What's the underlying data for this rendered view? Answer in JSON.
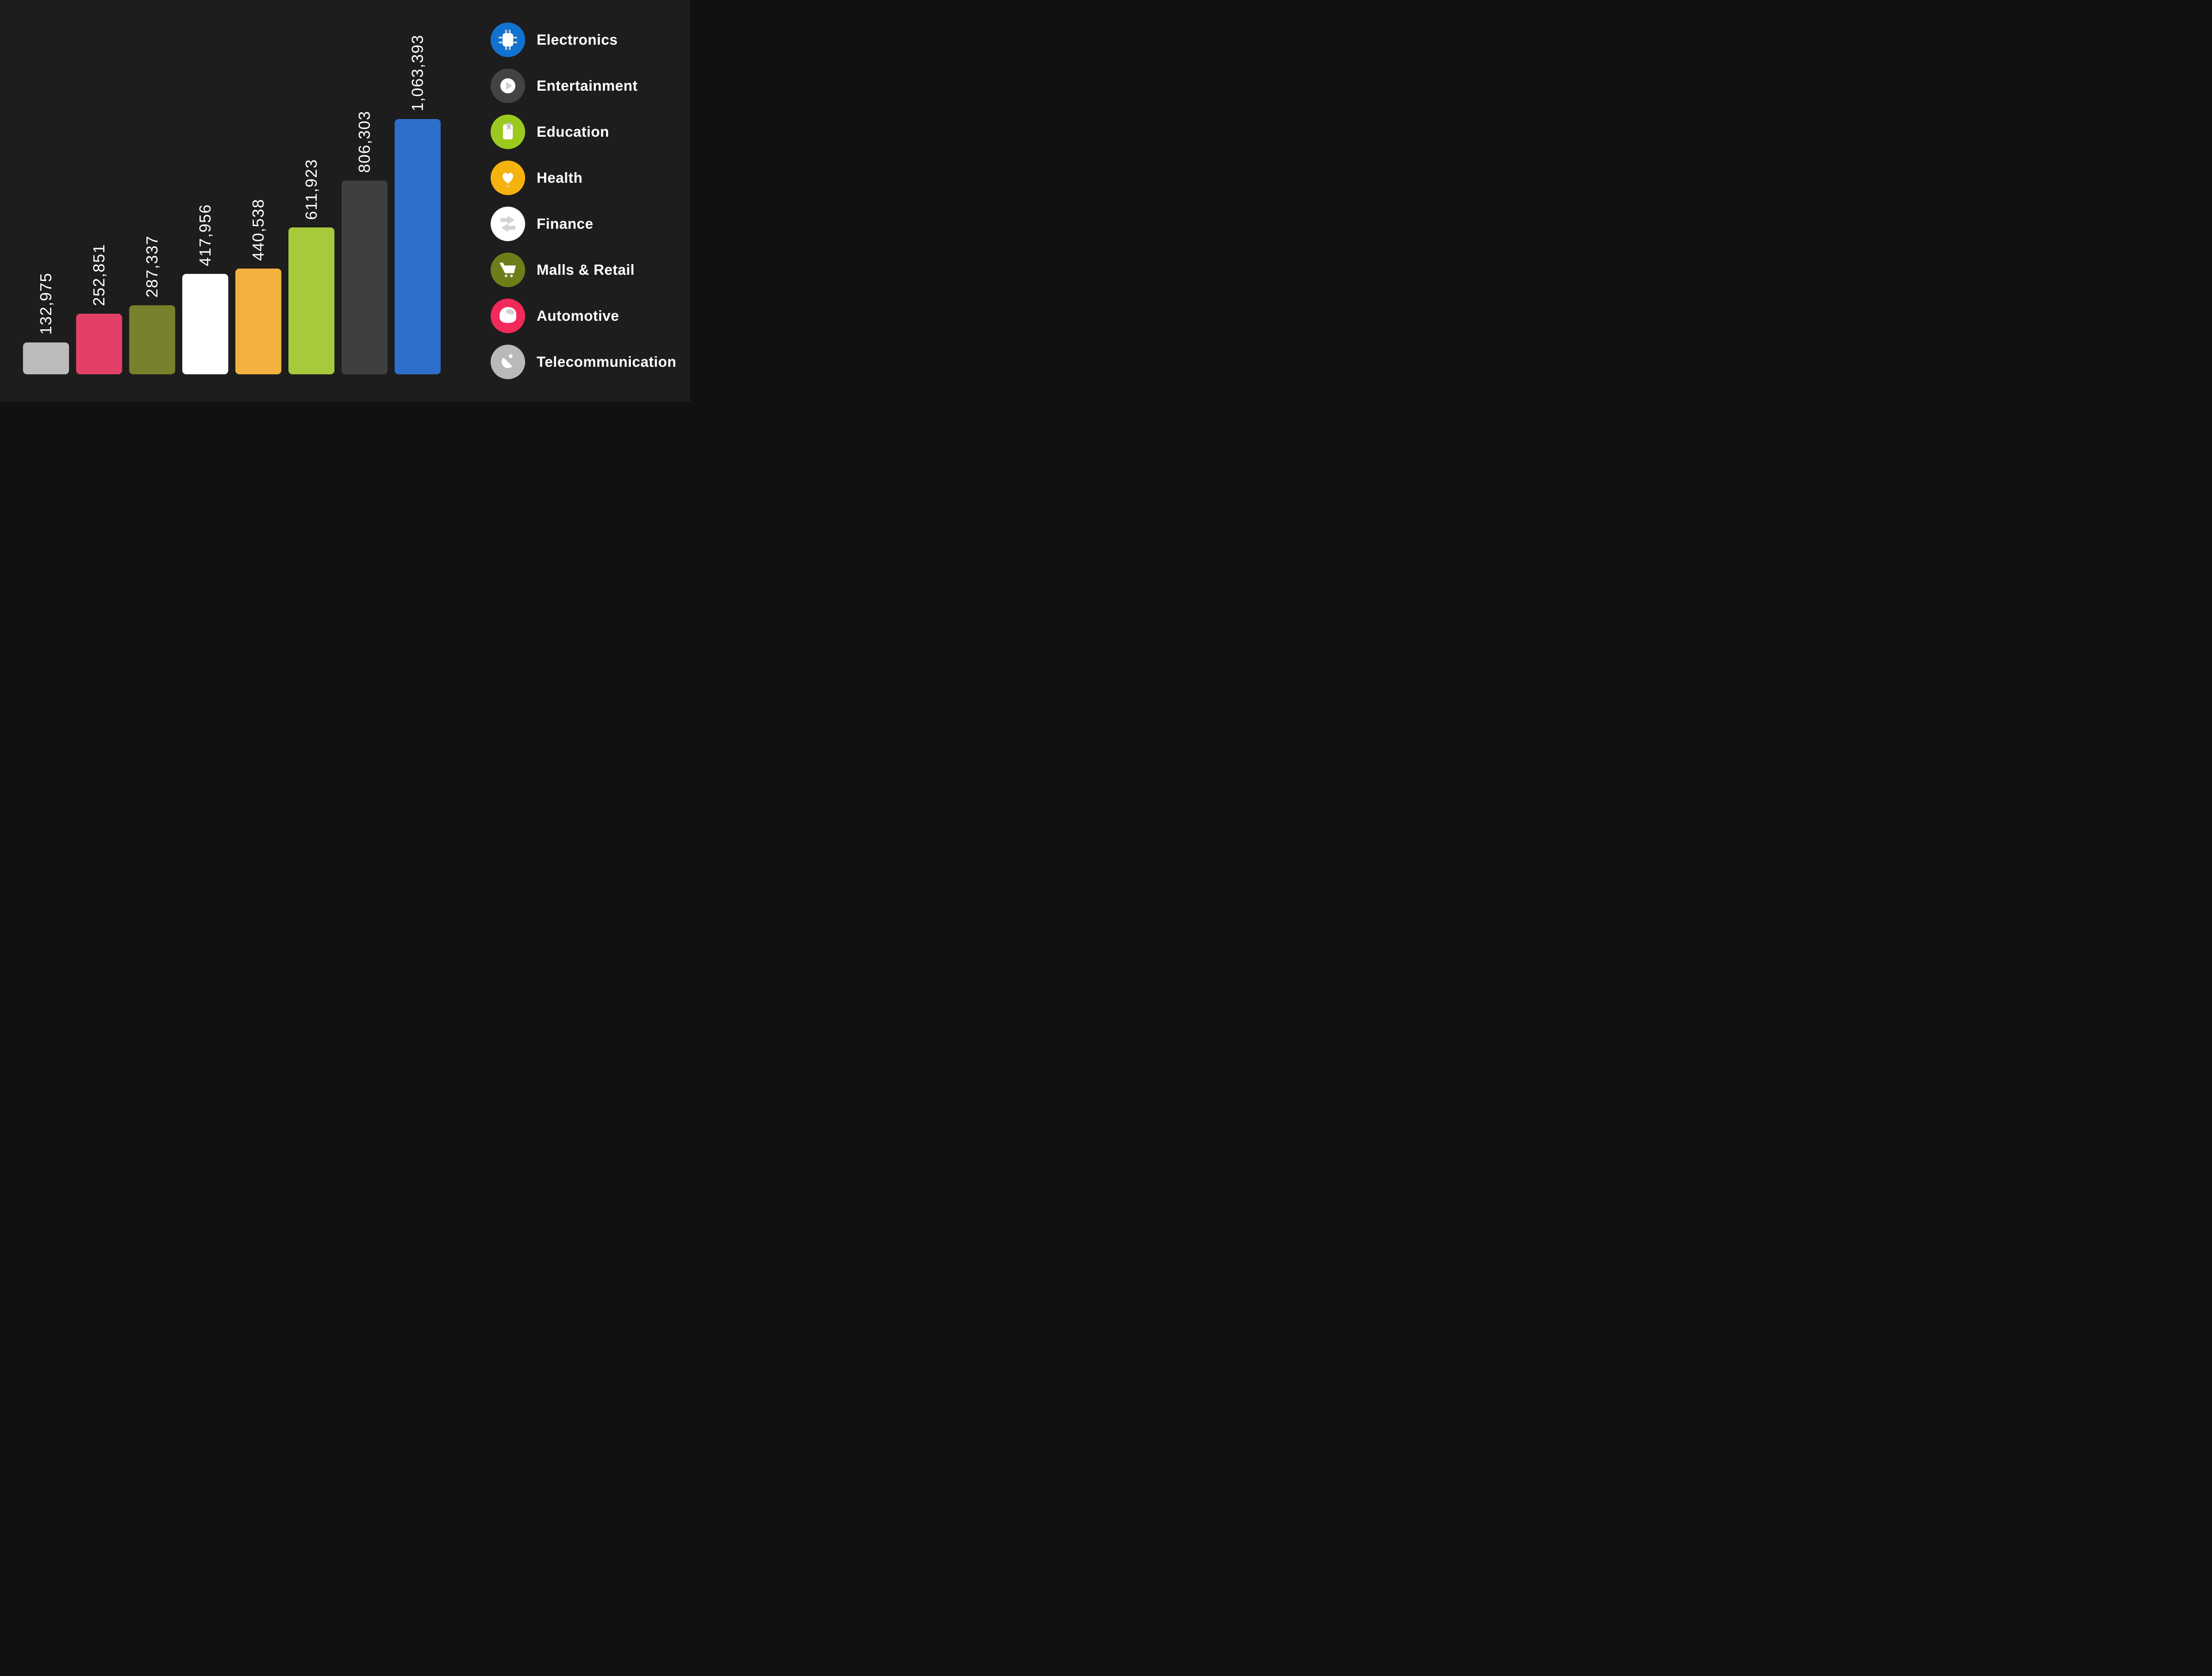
{
  "page": {
    "background": "#1d1d1d",
    "text_color": "#ffffff"
  },
  "chart_data": {
    "type": "bar",
    "orientation": "vertical",
    "title": "",
    "xlabel": "",
    "ylabel": "",
    "grid": "off",
    "ylim": [
      0,
      1063393
    ],
    "value_labels": "rotated above bars",
    "legend_position": "right",
    "categories": [
      "Telecommunication",
      "Automotive",
      "Malls & Retail",
      "Finance",
      "Health",
      "Education",
      "Entertainment",
      "Electronics"
    ],
    "bars": [
      {
        "category": "Telecommunication",
        "value": 132975,
        "label": "132,975",
        "color": "#bcbcbc"
      },
      {
        "category": "Automotive",
        "value": 252851,
        "label": "252,851",
        "color": "#e34067"
      },
      {
        "category": "Malls & Retail",
        "value": 287337,
        "label": "287,337",
        "color": "#78802b"
      },
      {
        "category": "Finance",
        "value": 417956,
        "label": "417,956",
        "color": "#ffffff"
      },
      {
        "category": "Health",
        "value": 440538,
        "label": "440,538",
        "color": "#f3b13f"
      },
      {
        "category": "Education",
        "value": 611923,
        "label": "611,923",
        "color": "#a7ca3d"
      },
      {
        "category": "Entertainment",
        "value": 806303,
        "label": "806,303",
        "color": "#3f3f3f"
      },
      {
        "category": "Electronics",
        "value": 1063393,
        "label": "1,063,393",
        "color": "#2c70cb"
      }
    ]
  },
  "legend": {
    "items": [
      {
        "label": "Electronics",
        "color": "#1173cf",
        "icon": "chip-icon"
      },
      {
        "label": "Entertainment",
        "color": "#434343",
        "icon": "play-icon"
      },
      {
        "label": "Education",
        "color": "#9cc91f",
        "icon": "book-icon"
      },
      {
        "label": "Health",
        "color": "#f8b20e",
        "icon": "heart-icon"
      },
      {
        "label": "Finance",
        "color": "#ffffff",
        "icon": "transfer-arrows-icon"
      },
      {
        "label": "Malls & Retail",
        "color": "#6f7d18",
        "icon": "cart-icon"
      },
      {
        "label": "Automotive",
        "color": "#f22a5c",
        "icon": "helmet-icon"
      },
      {
        "label": "Telecommunication",
        "color": "#b9b9b9",
        "icon": "satellite-dish-icon"
      }
    ]
  }
}
